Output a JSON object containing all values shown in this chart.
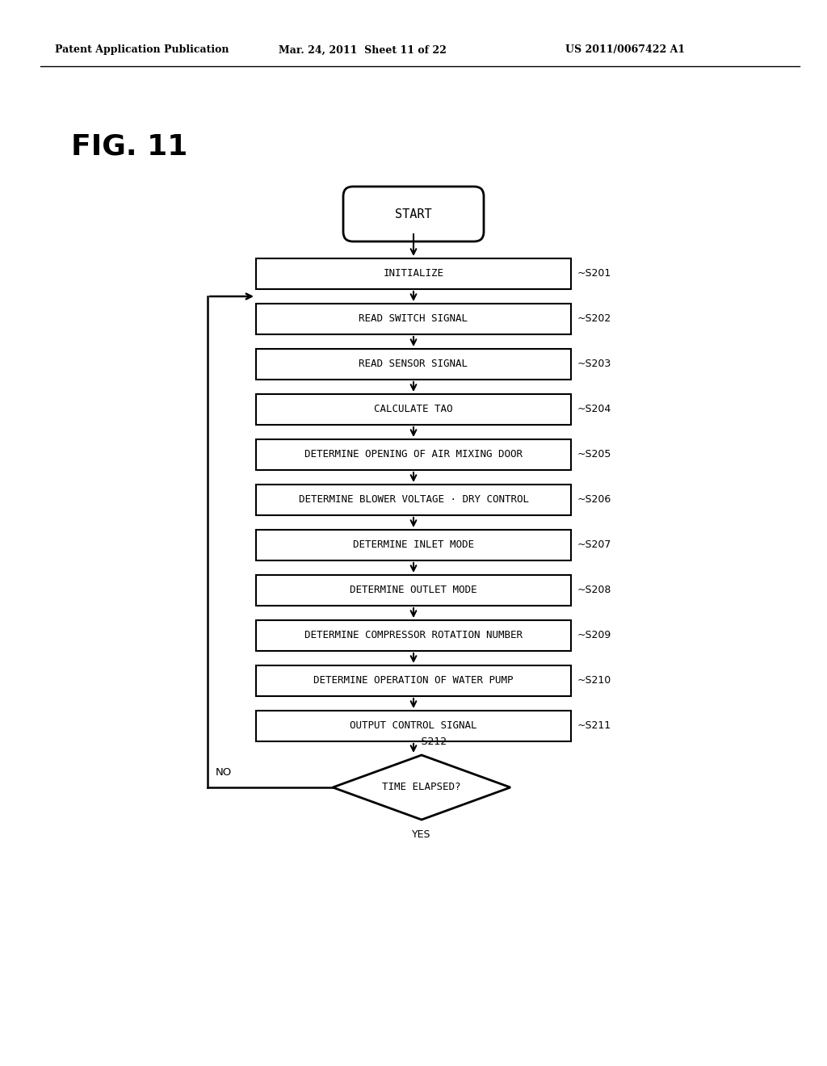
{
  "bg_color": "#ffffff",
  "header_left": "Patent Application Publication",
  "header_mid": "Mar. 24, 2011  Sheet 11 of 22",
  "header_right": "US 2011/0067422 A1",
  "fig_label": "FIG. 11",
  "start_label": "START",
  "boxes": [
    {
      "label": "INITIALIZE",
      "step": "S201"
    },
    {
      "label": "READ SWITCH SIGNAL",
      "step": "S202"
    },
    {
      "label": "READ SENSOR SIGNAL",
      "step": "S203"
    },
    {
      "label": "CALCULATE TAO",
      "step": "S204"
    },
    {
      "label": "DETERMINE OPENING OF AIR MIXING DOOR",
      "step": "S205"
    },
    {
      "label": "DETERMINE BLOWER VOLTAGE · DRY CONTROL",
      "step": "S206"
    },
    {
      "label": "DETERMINE INLET MODE",
      "step": "S207"
    },
    {
      "label": "DETERMINE OUTLET MODE",
      "step": "S208"
    },
    {
      "label": "DETERMINE COMPRESSOR ROTATION NUMBER",
      "step": "S209"
    },
    {
      "label": "DETERMINE OPERATION OF WATER PUMP",
      "step": "S210"
    },
    {
      "label": "OUTPUT CONTROL SIGNAL",
      "step": "S211"
    }
  ],
  "diamond_label": "TIME ELAPSED?",
  "diamond_step": "S212",
  "yes_label": "YES",
  "no_label": "NO",
  "font_family": "monospace"
}
